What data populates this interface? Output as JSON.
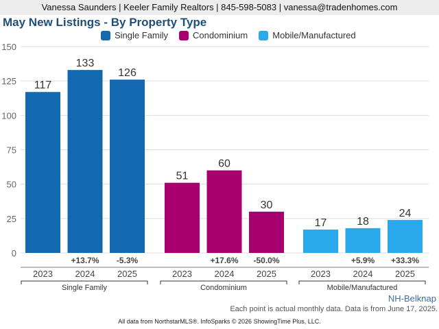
{
  "header": {
    "contact": "Vanessa Saunders | Keeler Family Realtors | 845-598-5083 | vanessa@tradenhomes.com"
  },
  "region": "NH-Belknap",
  "note": "Each point is actual monthly data. Data is from June 17, 2025.",
  "footer": "All data from NorthstarMLS®. InfoSparks © 2026 ShowingTime Plus, LLC.",
  "chart_data": {
    "type": "bar",
    "title": "May New Listings - By Property Type",
    "xlabel": "",
    "ylabel": "",
    "ylim": [
      0,
      150
    ],
    "yticks": [
      0,
      25,
      50,
      75,
      100,
      125,
      150
    ],
    "grid": true,
    "legend_position": "top",
    "categories": [
      "2023",
      "2024",
      "2025"
    ],
    "series": [
      {
        "name": "Single Family",
        "color": "#1269b0",
        "values": [
          117,
          133,
          126
        ],
        "changes": [
          "",
          "+13.7%",
          "-5.3%"
        ]
      },
      {
        "name": "Condominium",
        "color": "#a8006e",
        "values": [
          51,
          60,
          30
        ],
        "changes": [
          "",
          "+17.6%",
          "-50.0%"
        ]
      },
      {
        "name": "Mobile/Manufactured",
        "color": "#29a9ec",
        "values": [
          17,
          18,
          24
        ],
        "changes": [
          "",
          "+5.9%",
          "+33.3%"
        ]
      }
    ]
  }
}
